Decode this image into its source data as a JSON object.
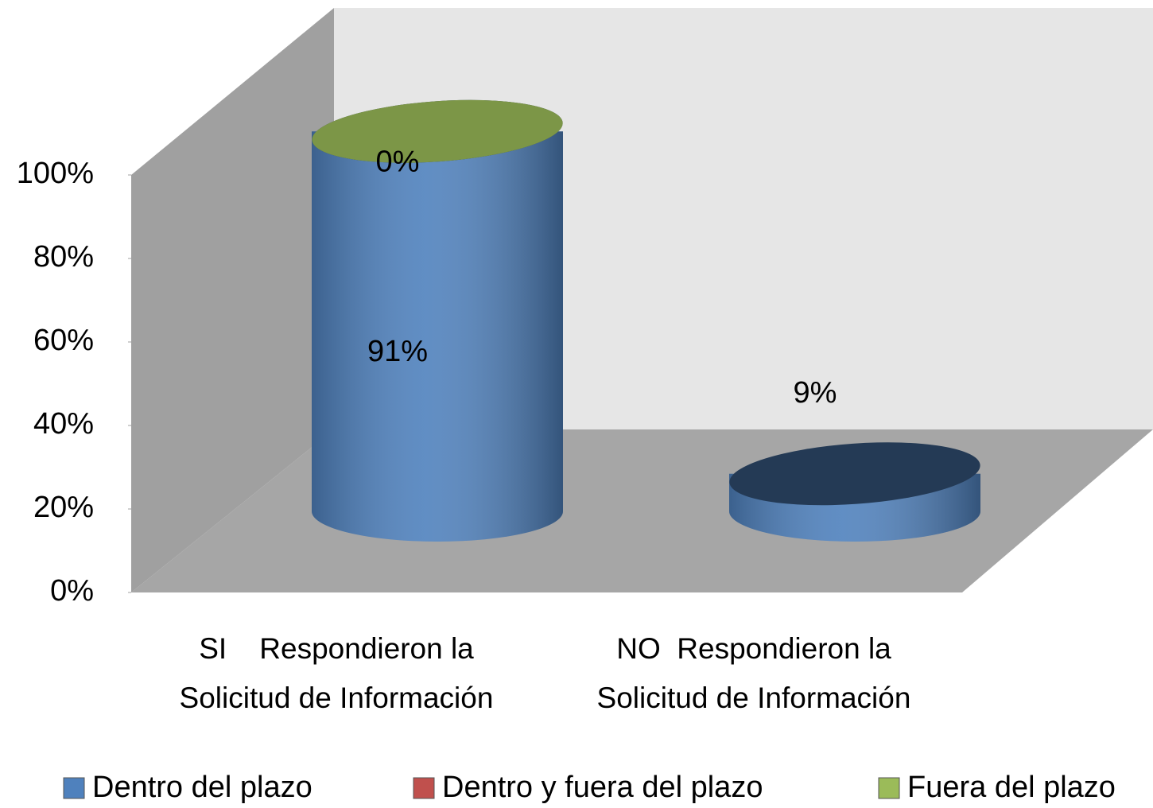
{
  "chart_data": {
    "type": "bar3d",
    "categories": [
      "SI    Respondieron la Solicitud de Información",
      "NO  Respondieron la Solicitud de Información"
    ],
    "series": [
      {
        "name": "Dentro del plazo",
        "color": "#4f81bd",
        "values": [
          91,
          9
        ],
        "value_labels": [
          "91%",
          "9%"
        ]
      },
      {
        "name": "Dentro y fuera del plazo",
        "color": "#c0504d",
        "values": [
          0,
          0
        ]
      },
      {
        "name": "Fuera del plazo",
        "color": "#9bbb59",
        "values": [
          0,
          0
        ],
        "value_labels": [
          "0%",
          null
        ]
      }
    ],
    "ylim": [
      0,
      100
    ],
    "yticks": [
      {
        "value": 0,
        "label": "0%"
      },
      {
        "value": 20,
        "label": "20%"
      },
      {
        "value": 40,
        "label": "40%"
      },
      {
        "value": 60,
        "label": "60%"
      },
      {
        "value": 80,
        "label": "80%"
      },
      {
        "value": 100,
        "label": "100%"
      }
    ],
    "stacked": true,
    "legend": "bottom"
  }
}
